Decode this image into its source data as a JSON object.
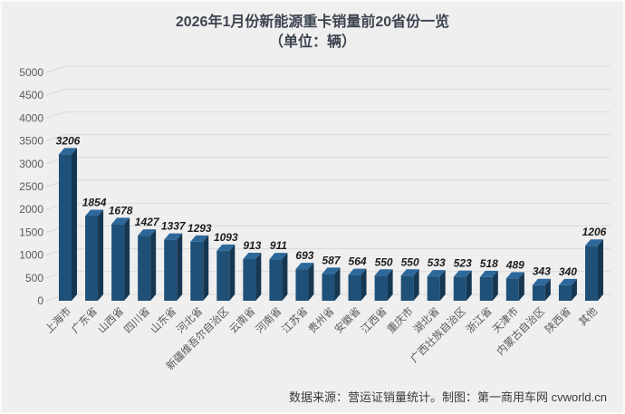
{
  "title": {
    "line1": "2026年1月份新能源重卡销量前20省份一览",
    "line2": "（单位：辆）"
  },
  "footer": {
    "text": "数据来源：营运证销量统计。制图：第一商用车网 cvworld.cn"
  },
  "chart_data": {
    "type": "bar",
    "style": "3d-column",
    "title": "2026年1月份新能源重卡销量前20省份一览",
    "subtitle": "（单位：辆）",
    "categories": [
      "上海市",
      "广东省",
      "山西省",
      "四川省",
      "山东省",
      "河北省",
      "新疆维吾尔自治区",
      "云南省",
      "河南省",
      "江苏省",
      "贵州省",
      "安徽省",
      "江西省",
      "重庆市",
      "湖北省",
      "广西壮族自治区",
      "浙江省",
      "天津市",
      "内蒙古自治区",
      "陕西省",
      "其他"
    ],
    "values": [
      3206,
      1854,
      1678,
      1427,
      1337,
      1293,
      1093,
      913,
      911,
      693,
      587,
      564,
      550,
      550,
      533,
      523,
      518,
      489,
      343,
      340,
      1206
    ],
    "xlabel": "",
    "ylabel": "",
    "ylim": [
      0,
      5000
    ],
    "ytick_step": 500,
    "grid": true,
    "legend": false,
    "data_labels": true,
    "colors": {
      "background": "#efefef",
      "gridline": "#d9d9d9",
      "bar_front": "#1f5078",
      "bar_top": "#2d689b",
      "bar_side": "#153752",
      "value_label": "#1c1c1c",
      "axis_label": "#595959",
      "title": "#3d4450"
    }
  }
}
